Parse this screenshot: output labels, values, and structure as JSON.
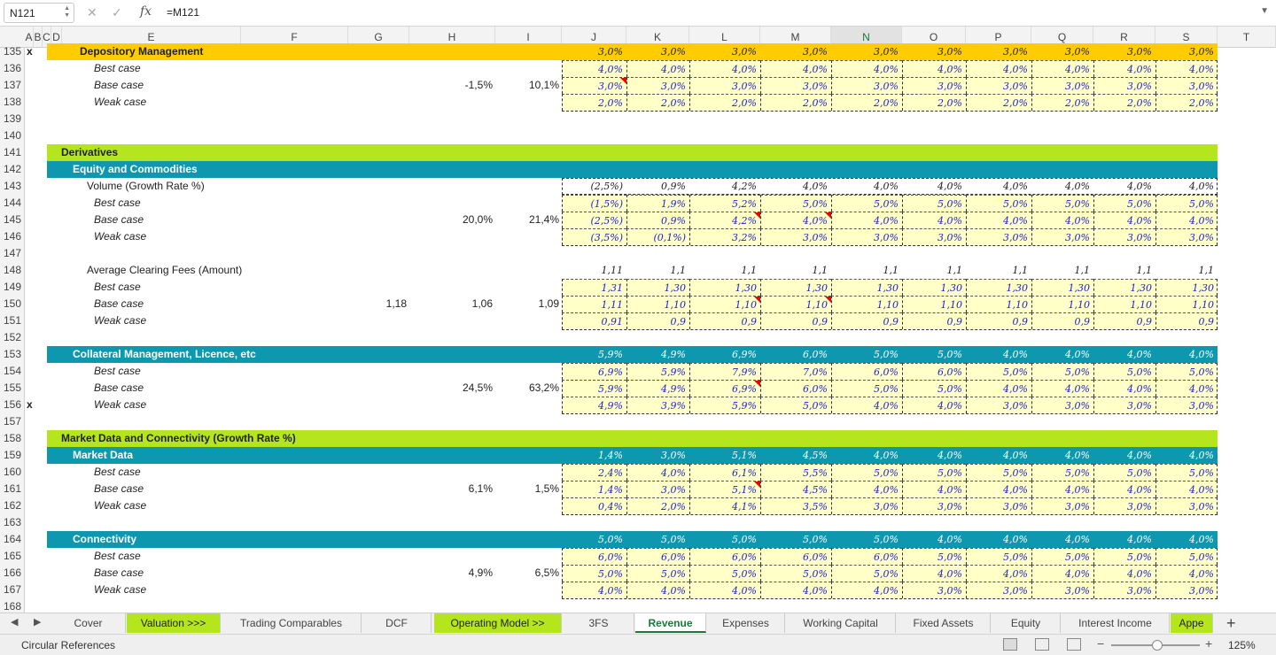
{
  "formula_bar": {
    "name_box": "N121",
    "formula": "=M121",
    "fx": "fx"
  },
  "columns": [
    "A",
    "B",
    "C",
    "D",
    "E",
    "F",
    "G",
    "H",
    "I",
    "J",
    "K",
    "L",
    "M",
    "N",
    "O",
    "P",
    "Q",
    "R",
    "S",
    "T"
  ],
  "selected_column": "N",
  "rows": [
    {
      "n": "135",
      "x": "x",
      "label": "Depository Management",
      "style": "yellow-bold",
      "vals": [
        "3,0%",
        "3,0%",
        "3,0%",
        "3,0%",
        "3,0%",
        "3,0%",
        "3,0%",
        "3,0%",
        "3,0%",
        "3,0%"
      ]
    },
    {
      "n": "136",
      "label": "Best case",
      "style": "case",
      "vals": [
        "4,0%",
        "4,0%",
        "4,0%",
        "4,0%",
        "4,0%",
        "4,0%",
        "4,0%",
        "4,0%",
        "4,0%",
        "4,0%"
      ]
    },
    {
      "n": "137",
      "label": "Base case",
      "style": "case",
      "h": "-1,5%",
      "i": "10,1%",
      "vals": [
        "3,0%",
        "3,0%",
        "3,0%",
        "3,0%",
        "3,0%",
        "3,0%",
        "3,0%",
        "3,0%",
        "3,0%",
        "3,0%"
      ]
    },
    {
      "n": "138",
      "label": "Weak case",
      "style": "case",
      "vals": [
        "2,0%",
        "2,0%",
        "2,0%",
        "2,0%",
        "2,0%",
        "2,0%",
        "2,0%",
        "2,0%",
        "2,0%",
        "2,0%"
      ]
    },
    {
      "n": "139",
      "style": "blank"
    },
    {
      "n": "140",
      "style": "blank"
    },
    {
      "n": "141",
      "label": "Derivatives",
      "style": "green"
    },
    {
      "n": "142",
      "label": "Equity and Commodities",
      "style": "teal"
    },
    {
      "n": "143",
      "label": "Volume (Growth Rate %)",
      "style": "metric",
      "vals": [
        "(2,5%)",
        "0,9%",
        "4,2%",
        "4,0%",
        "4,0%",
        "4,0%",
        "4,0%",
        "4,0%",
        "4,0%",
        "4,0%"
      ]
    },
    {
      "n": "144",
      "label": "Best case",
      "style": "case",
      "vals": [
        "(1,5%)",
        "1,9%",
        "5,2%",
        "5,0%",
        "5,0%",
        "5,0%",
        "5,0%",
        "5,0%",
        "5,0%",
        "5,0%"
      ]
    },
    {
      "n": "145",
      "label": "Base case",
      "style": "case",
      "h": "20,0%",
      "i": "21,4%",
      "vals": [
        "(2,5%)",
        "0,9%",
        "4,2%",
        "4,0%",
        "4,0%",
        "4,0%",
        "4,0%",
        "4,0%",
        "4,0%",
        "4,0%"
      ]
    },
    {
      "n": "146",
      "label": "Weak case",
      "style": "case",
      "vals": [
        "(3,5%)",
        "(0,1%)",
        "3,2%",
        "3,0%",
        "3,0%",
        "3,0%",
        "3,0%",
        "3,0%",
        "3,0%",
        "3,0%"
      ]
    },
    {
      "n": "147",
      "style": "blank"
    },
    {
      "n": "148",
      "label": "Average Clearing Fees (Amount)",
      "style": "metric",
      "vals": [
        "1,11",
        "1,1",
        "1,1",
        "1,1",
        "1,1",
        "1,1",
        "1,1",
        "1,1",
        "1,1",
        "1,1"
      ]
    },
    {
      "n": "149",
      "label": "Best case",
      "style": "case",
      "vals": [
        "1,31",
        "1,30",
        "1,30",
        "1,30",
        "1,30",
        "1,30",
        "1,30",
        "1,30",
        "1,30",
        "1,30"
      ]
    },
    {
      "n": "150",
      "label": "Base case",
      "style": "case",
      "g": "1,18",
      "h": "1,06",
      "i": "1,09",
      "vals": [
        "1,11",
        "1,10",
        "1,10",
        "1,10",
        "1,10",
        "1,10",
        "1,10",
        "1,10",
        "1,10",
        "1,10"
      ]
    },
    {
      "n": "151",
      "label": "Weak case",
      "style": "case",
      "vals": [
        "0,91",
        "0,9",
        "0,9",
        "0,9",
        "0,9",
        "0,9",
        "0,9",
        "0,9",
        "0,9",
        "0,9"
      ]
    },
    {
      "n": "152",
      "style": "blank"
    },
    {
      "n": "153",
      "label": "Collateral Management, Licence, etc",
      "style": "teal",
      "vals": [
        "5,9%",
        "4,9%",
        "6,9%",
        "6,0%",
        "5,0%",
        "5,0%",
        "4,0%",
        "4,0%",
        "4,0%",
        "4,0%"
      ]
    },
    {
      "n": "154",
      "label": "Best case",
      "style": "case",
      "vals": [
        "6,9%",
        "5,9%",
        "7,9%",
        "7,0%",
        "6,0%",
        "6,0%",
        "5,0%",
        "5,0%",
        "5,0%",
        "5,0%"
      ]
    },
    {
      "n": "155",
      "label": "Base case",
      "style": "case",
      "h": "24,5%",
      "i": "63,2%",
      "vals": [
        "5,9%",
        "4,9%",
        "6,9%",
        "6,0%",
        "5,0%",
        "5,0%",
        "4,0%",
        "4,0%",
        "4,0%",
        "4,0%"
      ]
    },
    {
      "n": "156",
      "x": "x",
      "label": "Weak case",
      "style": "case",
      "vals": [
        "4,9%",
        "3,9%",
        "5,9%",
        "5,0%",
        "4,0%",
        "4,0%",
        "3,0%",
        "3,0%",
        "3,0%",
        "3,0%"
      ]
    },
    {
      "n": "157",
      "style": "blank"
    },
    {
      "n": "158",
      "label": "Market Data and Connectivity (Growth Rate %)",
      "style": "green"
    },
    {
      "n": "159",
      "label": "Market Data",
      "style": "teal",
      "vals": [
        "1,4%",
        "3,0%",
        "5,1%",
        "4,5%",
        "4,0%",
        "4,0%",
        "4,0%",
        "4,0%",
        "4,0%",
        "4,0%"
      ]
    },
    {
      "n": "160",
      "label": "Best case",
      "style": "case",
      "vals": [
        "2,4%",
        "4,0%",
        "6,1%",
        "5,5%",
        "5,0%",
        "5,0%",
        "5,0%",
        "5,0%",
        "5,0%",
        "5,0%"
      ]
    },
    {
      "n": "161",
      "label": "Base case",
      "style": "case",
      "h": "6,1%",
      "i": "1,5%",
      "vals": [
        "1,4%",
        "3,0%",
        "5,1%",
        "4,5%",
        "4,0%",
        "4,0%",
        "4,0%",
        "4,0%",
        "4,0%",
        "4,0%"
      ]
    },
    {
      "n": "162",
      "label": "Weak case",
      "style": "case",
      "vals": [
        "0,4%",
        "2,0%",
        "4,1%",
        "3,5%",
        "3,0%",
        "3,0%",
        "3,0%",
        "3,0%",
        "3,0%",
        "3,0%"
      ]
    },
    {
      "n": "163",
      "style": "blank"
    },
    {
      "n": "164",
      "label": "Connectivity",
      "style": "teal",
      "vals": [
        "5,0%",
        "5,0%",
        "5,0%",
        "5,0%",
        "5,0%",
        "4,0%",
        "4,0%",
        "4,0%",
        "4,0%",
        "4,0%"
      ]
    },
    {
      "n": "165",
      "label": "Best case",
      "style": "case",
      "vals": [
        "6,0%",
        "6,0%",
        "6,0%",
        "6,0%",
        "6,0%",
        "5,0%",
        "5,0%",
        "5,0%",
        "5,0%",
        "5,0%"
      ]
    },
    {
      "n": "166",
      "label": "Base case",
      "style": "case",
      "h": "4,9%",
      "i": "6,5%",
      "vals": [
        "5,0%",
        "5,0%",
        "5,0%",
        "5,0%",
        "5,0%",
        "4,0%",
        "4,0%",
        "4,0%",
        "4,0%",
        "4,0%"
      ]
    },
    {
      "n": "167",
      "label": "Weak case",
      "style": "case",
      "vals": [
        "4,0%",
        "4,0%",
        "4,0%",
        "4,0%",
        "4,0%",
        "3,0%",
        "3,0%",
        "3,0%",
        "3,0%",
        "3,0%"
      ]
    },
    {
      "n": "168",
      "style": "blank"
    }
  ],
  "sheet_tabs": [
    {
      "label": "Cover"
    },
    {
      "label": "Valuation >>>",
      "green": true
    },
    {
      "label": "Trading Comparables"
    },
    {
      "label": "DCF"
    },
    {
      "label": "Operating Model >>",
      "green": true
    },
    {
      "label": "3FS"
    },
    {
      "label": "Revenue",
      "active": true
    },
    {
      "label": "Expenses"
    },
    {
      "label": "Working Capital"
    },
    {
      "label": "Fixed Assets"
    },
    {
      "label": "Equity"
    },
    {
      "label": "Interest Income"
    },
    {
      "label": "Appe",
      "green": true
    }
  ],
  "status": {
    "left": "Circular References",
    "zoom": "125%"
  },
  "colors": {
    "yellow": "#ffcc00",
    "green": "#b5e61d",
    "teal": "#0e98b0",
    "input_fill": "#ffffc8",
    "input_font": "#2222cc",
    "selected": "#1b7c3d"
  }
}
